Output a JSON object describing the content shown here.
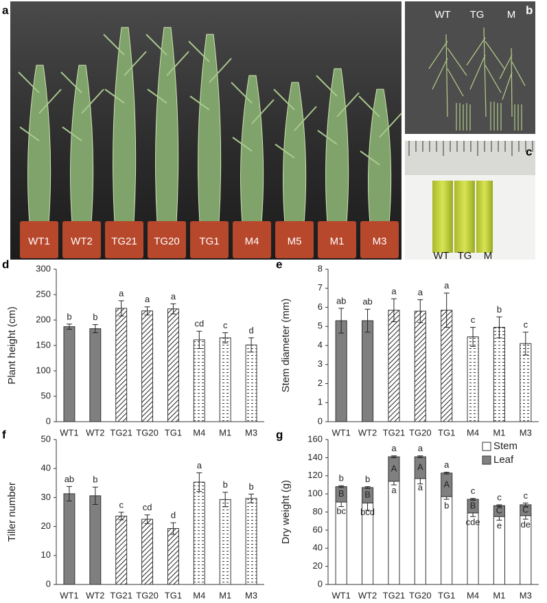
{
  "photos": {
    "a": {
      "panel": "a",
      "labels": [
        "WT1",
        "WT2",
        "TG21",
        "TG20",
        "TG1",
        "M4",
        "M5",
        "M1",
        "M3"
      ]
    },
    "b": {
      "panel": "b",
      "labels": [
        "WT",
        "TG",
        "M"
      ]
    },
    "c": {
      "panel": "c",
      "labels": [
        "WT",
        "TG",
        "M"
      ]
    }
  },
  "chart_data": [
    {
      "type": "bar",
      "panel": "d",
      "y_label": "Plant height (cm)",
      "categories": [
        "WT1",
        "WT2",
        "TG21",
        "TG20",
        "TG1",
        "M4",
        "M1",
        "M3"
      ],
      "values": [
        187,
        183,
        223,
        218,
        222,
        161,
        165,
        151
      ],
      "errors": [
        5,
        8,
        15,
        8,
        10,
        17,
        10,
        14
      ],
      "labels": [
        "b",
        "b",
        "a",
        "a",
        "a",
        "cd",
        "c",
        "d"
      ],
      "color": "#7f7f7f",
      "fills": [
        "solid",
        "solid",
        "hatch",
        "hatch",
        "hatch",
        "dash",
        "dash",
        "dash"
      ],
      "ylim": [
        0,
        300
      ],
      "yticks": [
        0,
        50,
        100,
        150,
        200,
        250,
        300
      ]
    },
    {
      "type": "bar",
      "panel": "e",
      "y_label": "Stem diameter (mm)",
      "categories": [
        "WT1",
        "WT2",
        "TG21",
        "TG20",
        "TG1",
        "M4",
        "M1",
        "M3"
      ],
      "values": [
        5.3,
        5.3,
        5.85,
        5.8,
        5.85,
        4.45,
        4.95,
        4.1
      ],
      "errors": [
        0.65,
        0.6,
        0.6,
        0.6,
        0.9,
        0.5,
        0.55,
        0.6
      ],
      "labels": [
        "ab",
        "ab",
        "a",
        "a",
        "a",
        "c",
        "b",
        "c"
      ],
      "color": "#7f7f7f",
      "fills": [
        "solid",
        "solid",
        "hatch",
        "hatch",
        "hatch",
        "dash",
        "dash",
        "dash"
      ],
      "ylim": [
        0,
        8
      ],
      "yticks": [
        0,
        1,
        2,
        3,
        4,
        5,
        6,
        7,
        8
      ]
    },
    {
      "type": "bar",
      "panel": "f",
      "y_label": "Tiller number",
      "categories": [
        "WT1",
        "WT2",
        "TG21",
        "TG20",
        "TG1",
        "M4",
        "M1",
        "M3"
      ],
      "values": [
        31.3,
        30.6,
        23.6,
        22.5,
        19.3,
        35.3,
        29.3,
        29.7
      ],
      "errors": [
        2.5,
        3,
        1.3,
        1.5,
        2,
        3.2,
        2.5,
        1.5
      ],
      "labels": [
        "ab",
        "b",
        "c",
        "cd",
        "d",
        "a",
        "b",
        "b"
      ],
      "color": "#7f7f7f",
      "fills": [
        "solid",
        "solid",
        "hatch",
        "hatch",
        "hatch",
        "dash",
        "dash",
        "dash"
      ],
      "ylim": [
        0,
        50
      ],
      "yticks": [
        0,
        10,
        20,
        30,
        40,
        50
      ]
    },
    {
      "type": "stacked_bar",
      "panel": "g",
      "y_label": "Dry weight (g)",
      "categories": [
        "WT1",
        "WT2",
        "TG21",
        "TG20",
        "TG1",
        "M4",
        "M1",
        "M3"
      ],
      "series": [
        {
          "name": "Stem",
          "color": "#ffffff",
          "values": [
            91,
            90,
            114,
            117,
            97,
            79,
            75,
            76
          ],
          "errors": [
            5,
            8,
            4,
            6,
            3,
            4,
            4,
            4
          ],
          "labels": [
            "bc",
            "bcd",
            "a",
            "a",
            "b",
            "cde",
            "e",
            "de"
          ]
        },
        {
          "name": "Leaf",
          "color": "#808080",
          "values": [
            17,
            17,
            27,
            24,
            26,
            15,
            12,
            12
          ],
          "errors": [
            1,
            1,
            1,
            1,
            1,
            1,
            1,
            2
          ],
          "labels": [
            "B",
            "B",
            "A",
            "A",
            "A",
            "B",
            "C",
            "C"
          ]
        }
      ],
      "top_labels": [
        "b",
        "b",
        "a",
        "a",
        "a",
        "c",
        "c",
        "c"
      ],
      "legend": "top-right",
      "ylim": [
        0,
        160
      ],
      "yticks": [
        0,
        20,
        40,
        60,
        80,
        100,
        120,
        140,
        160
      ]
    }
  ]
}
